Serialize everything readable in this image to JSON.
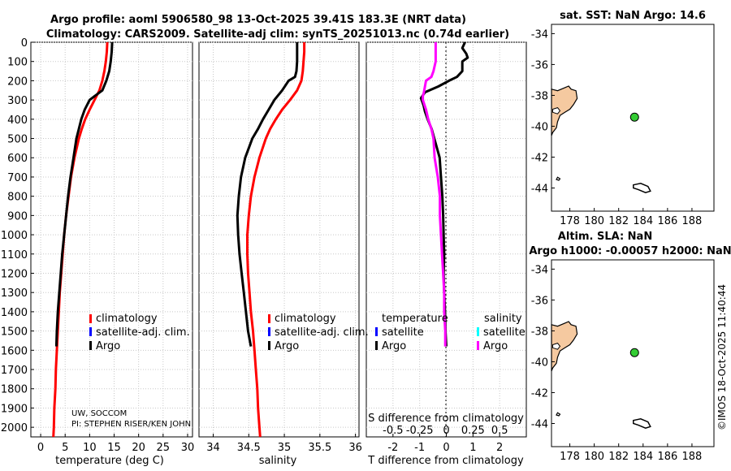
{
  "title": {
    "line1": "Argo profile: aoml 5906580_98 13-Oct-2025 39.41S 183.3E (NRT data)",
    "line2": "Climatology: CARS2009. Satellite-adj clim: synTS_20251013.nc (0.74d earlier)"
  },
  "credit": {
    "line1": "UW, SOCCOM",
    "line2": "PI: STEPHEN RISER/KEN JOHN"
  },
  "timestamp": "©IMOS 18-Oct-2025 11:40:44",
  "colors": {
    "clim": "#ff0000",
    "sat": "#0000ff",
    "argo": "#000000",
    "sal_diff": "#ff00ff",
    "sal_sat": "#00ffff",
    "land": "#f5c9a0",
    "float": "#33cc33"
  },
  "legend_main": [
    "climatology",
    "satellite-adj. clim.",
    "Argo"
  ],
  "legend_diff": {
    "temperature": "temperature",
    "salinity": "salinity",
    "satellite": "satellite",
    "argo": "Argo"
  },
  "chart_data": [
    {
      "type": "line",
      "id": "temperature",
      "xlabel": "temperature (deg C)",
      "ylabel": "",
      "xlim": [
        -2,
        31
      ],
      "ylim": [
        2050,
        0
      ],
      "xticks": [
        0,
        5,
        10,
        15,
        20,
        25,
        30
      ],
      "yticks": [
        0,
        100,
        200,
        300,
        400,
        500,
        600,
        700,
        800,
        900,
        1000,
        1100,
        1200,
        1300,
        1400,
        1500,
        1600,
        1700,
        1800,
        1900,
        2000
      ],
      "series": [
        {
          "name": "climatology",
          "color": "#ff0000",
          "depth": [
            0,
            50,
            100,
            150,
            200,
            250,
            300,
            350,
            400,
            450,
            500,
            600,
            700,
            800,
            900,
            1000,
            1100,
            1200,
            1300,
            1400,
            1500,
            1600,
            1700,
            1800,
            1900,
            2000,
            2050
          ],
          "values": [
            13.6,
            13.5,
            13.3,
            13.0,
            12.6,
            12.0,
            11.0,
            10.0,
            9.1,
            8.4,
            7.8,
            6.9,
            6.2,
            5.7,
            5.2,
            4.8,
            4.5,
            4.2,
            3.9,
            3.7,
            3.5,
            3.3,
            3.1,
            3.0,
            2.8,
            2.7,
            2.6
          ]
        },
        {
          "name": "Argo",
          "color": "#000000",
          "depth": [
            0,
            50,
            100,
            150,
            200,
            250,
            280,
            300,
            350,
            400,
            450,
            500,
            600,
            700,
            800,
            900,
            1000,
            1100,
            1200,
            1300,
            1400,
            1500,
            1580
          ],
          "values": [
            14.6,
            14.5,
            14.3,
            14.0,
            13.4,
            12.6,
            11.0,
            10.0,
            9.0,
            8.3,
            7.8,
            7.3,
            6.7,
            6.1,
            5.6,
            5.2,
            4.8,
            4.4,
            4.1,
            3.8,
            3.5,
            3.3,
            3.2
          ]
        }
      ]
    },
    {
      "type": "line",
      "id": "salinity",
      "xlabel": "salinity",
      "ylabel": "",
      "xlim": [
        33.8,
        36.05
      ],
      "ylim": [
        2050,
        0
      ],
      "xticks": [
        34,
        34.5,
        35,
        35.5,
        36
      ],
      "xticklabels": [
        "34",
        "34.5",
        "35",
        "35.5",
        "36"
      ],
      "series": [
        {
          "name": "climatology",
          "color": "#ff0000",
          "depth": [
            0,
            50,
            100,
            150,
            200,
            250,
            300,
            350,
            400,
            450,
            500,
            600,
            700,
            800,
            900,
            1000,
            1100,
            1200,
            1300,
            1400,
            1500,
            1600,
            1700,
            1800,
            1900,
            2000,
            2050
          ],
          "values": [
            35.28,
            35.28,
            35.27,
            35.26,
            35.24,
            35.18,
            35.08,
            34.97,
            34.88,
            34.8,
            34.74,
            34.65,
            34.58,
            34.53,
            34.5,
            34.48,
            34.48,
            34.49,
            34.51,
            34.53,
            34.56,
            34.58,
            34.6,
            34.62,
            34.63,
            34.65,
            34.66
          ]
        },
        {
          "name": "Argo",
          "color": "#000000",
          "depth": [
            0,
            50,
            100,
            150,
            180,
            200,
            250,
            300,
            350,
            400,
            450,
            500,
            600,
            700,
            800,
            900,
            1000,
            1100,
            1200,
            1300,
            1400,
            1500,
            1580
          ],
          "values": [
            35.18,
            35.18,
            35.18,
            35.17,
            35.15,
            35.06,
            34.97,
            34.86,
            34.78,
            34.7,
            34.63,
            34.55,
            34.45,
            34.39,
            34.36,
            34.34,
            34.35,
            34.37,
            34.4,
            34.43,
            34.46,
            34.49,
            34.53
          ]
        }
      ]
    },
    {
      "type": "line",
      "id": "difference",
      "xlabel": "T difference from climatology",
      "x2label": "S difference from climatology",
      "xlim": [
        -3,
        3
      ],
      "x2lim": [
        -0.75,
        0.75
      ],
      "ylim": [
        2050,
        0
      ],
      "xticks": [
        -2,
        -1,
        0,
        1,
        2
      ],
      "x2ticks": [
        -0.5,
        -0.25,
        0,
        0.25,
        0.5
      ],
      "x2ticklabels": [
        "-0.5",
        "-0.25",
        "0",
        "0.25",
        "0.5"
      ],
      "series": [
        {
          "name": "temperature Argo",
          "axis": "x",
          "color": "#000000",
          "depth": [
            0,
            30,
            60,
            80,
            100,
            150,
            180,
            200,
            230,
            260,
            290,
            310,
            330,
            360,
            400,
            450,
            500,
            550,
            600,
            700,
            800,
            900,
            1000,
            1100,
            1200,
            1300,
            1400,
            1500,
            1580
          ],
          "values": [
            0.7,
            0.6,
            0.75,
            0.8,
            0.6,
            0.6,
            0.4,
            0.1,
            -0.3,
            -0.8,
            -0.95,
            -0.9,
            -0.85,
            -0.8,
            -0.7,
            -0.55,
            -0.45,
            -0.35,
            -0.25,
            -0.2,
            -0.15,
            -0.12,
            -0.1,
            -0.08,
            -0.1,
            -0.08,
            -0.05,
            -0.03,
            0.0
          ]
        },
        {
          "name": "salinity Argo",
          "axis": "x2",
          "color": "#ff00ff",
          "depth": [
            0,
            100,
            150,
            180,
            200,
            230,
            260,
            280,
            300,
            350,
            400,
            450,
            500,
            600,
            700,
            800,
            900,
            1000,
            1100,
            1200,
            1300,
            1400,
            1500,
            1580
          ],
          "values": [
            -0.1,
            -0.1,
            -0.12,
            -0.14,
            -0.19,
            -0.2,
            -0.21,
            -0.22,
            -0.22,
            -0.19,
            -0.17,
            -0.14,
            -0.12,
            -0.11,
            -0.08,
            -0.06,
            -0.06,
            -0.05,
            -0.04,
            -0.03,
            -0.02,
            -0.02,
            -0.01,
            -0.01
          ]
        }
      ]
    },
    {
      "type": "scatter",
      "id": "sst_map",
      "title": "sat. SST: NaN Argo: 14.6",
      "xlim": [
        176.5,
        189.8
      ],
      "ylim": [
        -45.5,
        -33.4
      ],
      "xticks": [
        178,
        180,
        182,
        184,
        186,
        188
      ],
      "yticks": [
        -34,
        -36,
        -38,
        -40,
        -42,
        -44
      ],
      "points": [
        {
          "x": 183.3,
          "y": -39.41,
          "label": "Argo float"
        }
      ]
    },
    {
      "type": "scatter",
      "id": "sla_map",
      "title": "Altim. SLA: NaN",
      "subtitle": "Argo h1000: -0.00057 h2000: NaN",
      "xlim": [
        176.5,
        189.8
      ],
      "ylim": [
        -45.5,
        -33.4
      ],
      "xticks": [
        178,
        180,
        182,
        184,
        186,
        188
      ],
      "yticks": [
        -34,
        -36,
        -38,
        -40,
        -42,
        -44
      ],
      "points": [
        {
          "x": 183.3,
          "y": -39.41,
          "label": "Argo float"
        }
      ]
    }
  ]
}
